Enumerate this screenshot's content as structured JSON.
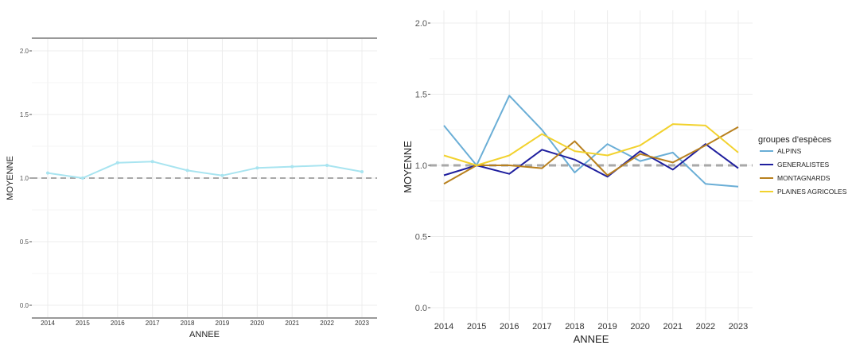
{
  "chart_data": [
    {
      "type": "line",
      "title": "",
      "xlabel": "ANNEE",
      "ylabel": "MOYENNE",
      "x": [
        2014,
        2015,
        2016,
        2017,
        2018,
        2019,
        2020,
        2021,
        2022,
        2023
      ],
      "y_ticks": [
        "0.0",
        "0.5",
        "1.0",
        "1.5",
        "2.0"
      ],
      "ylim": [
        0,
        2
      ],
      "reference_line": 1.0,
      "grid": true,
      "series": [
        {
          "name": "",
          "color": "#a8e4f0",
          "values": [
            1.04,
            1.0,
            1.12,
            1.13,
            1.06,
            1.02,
            1.08,
            1.09,
            1.1,
            1.05
          ]
        }
      ]
    },
    {
      "type": "line",
      "title": "",
      "xlabel": "ANNEE",
      "ylabel": "MOYENNE",
      "x": [
        2014,
        2015,
        2016,
        2017,
        2018,
        2019,
        2020,
        2021,
        2022,
        2023
      ],
      "y_ticks": [
        "0.0",
        "0.5",
        "1.0",
        "1.5",
        "2.0"
      ],
      "ylim": [
        0,
        2
      ],
      "reference_line": 1.0,
      "grid": true,
      "legend_title": "groupes d'espèces",
      "legend_position": "right",
      "series": [
        {
          "name": "ALPINS",
          "color": "#6aaed6",
          "values": [
            1.28,
            1.0,
            1.49,
            1.25,
            0.95,
            1.15,
            1.03,
            1.09,
            0.87,
            0.85
          ]
        },
        {
          "name": "GENERALISTES",
          "color": "#1f1f9e",
          "values": [
            0.93,
            1.0,
            0.94,
            1.11,
            1.04,
            0.92,
            1.1,
            0.97,
            1.15,
            0.98
          ]
        },
        {
          "name": "MONTAGNARDS",
          "color": "#b8801e",
          "values": [
            0.87,
            1.0,
            1.0,
            0.98,
            1.17,
            0.93,
            1.08,
            1.02,
            1.14,
            1.27
          ]
        },
        {
          "name": "PLAINES AGRICOLES",
          "color": "#f2d22e",
          "values": [
            1.07,
            1.0,
            1.07,
            1.22,
            1.1,
            1.07,
            1.14,
            1.29,
            1.28,
            1.09
          ]
        }
      ]
    }
  ]
}
